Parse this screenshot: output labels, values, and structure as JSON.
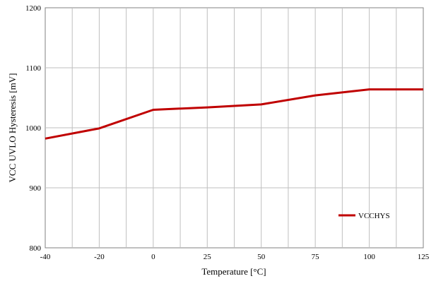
{
  "chart_data": {
    "type": "line",
    "title": "",
    "xlabel": "Temperature [°C]",
    "ylabel": "VCC UVLO Hysteresis  [mV]",
    "x": [
      -40,
      -20,
      0,
      25,
      50,
      75,
      100,
      125
    ],
    "xticks": [
      "-40",
      "-20",
      "0",
      "25",
      "50",
      "75",
      "100",
      "125"
    ],
    "ylim": [
      800,
      1200
    ],
    "yticks": [
      "800",
      "900",
      "1000",
      "1100",
      "1200"
    ],
    "grid": true,
    "legend_position": "bottom-right",
    "series": [
      {
        "name": "VCCHYS",
        "color": "#c00000",
        "values": [
          982,
          999,
          1030,
          1034,
          1039,
          1054,
          1064,
          1064
        ]
      }
    ]
  }
}
